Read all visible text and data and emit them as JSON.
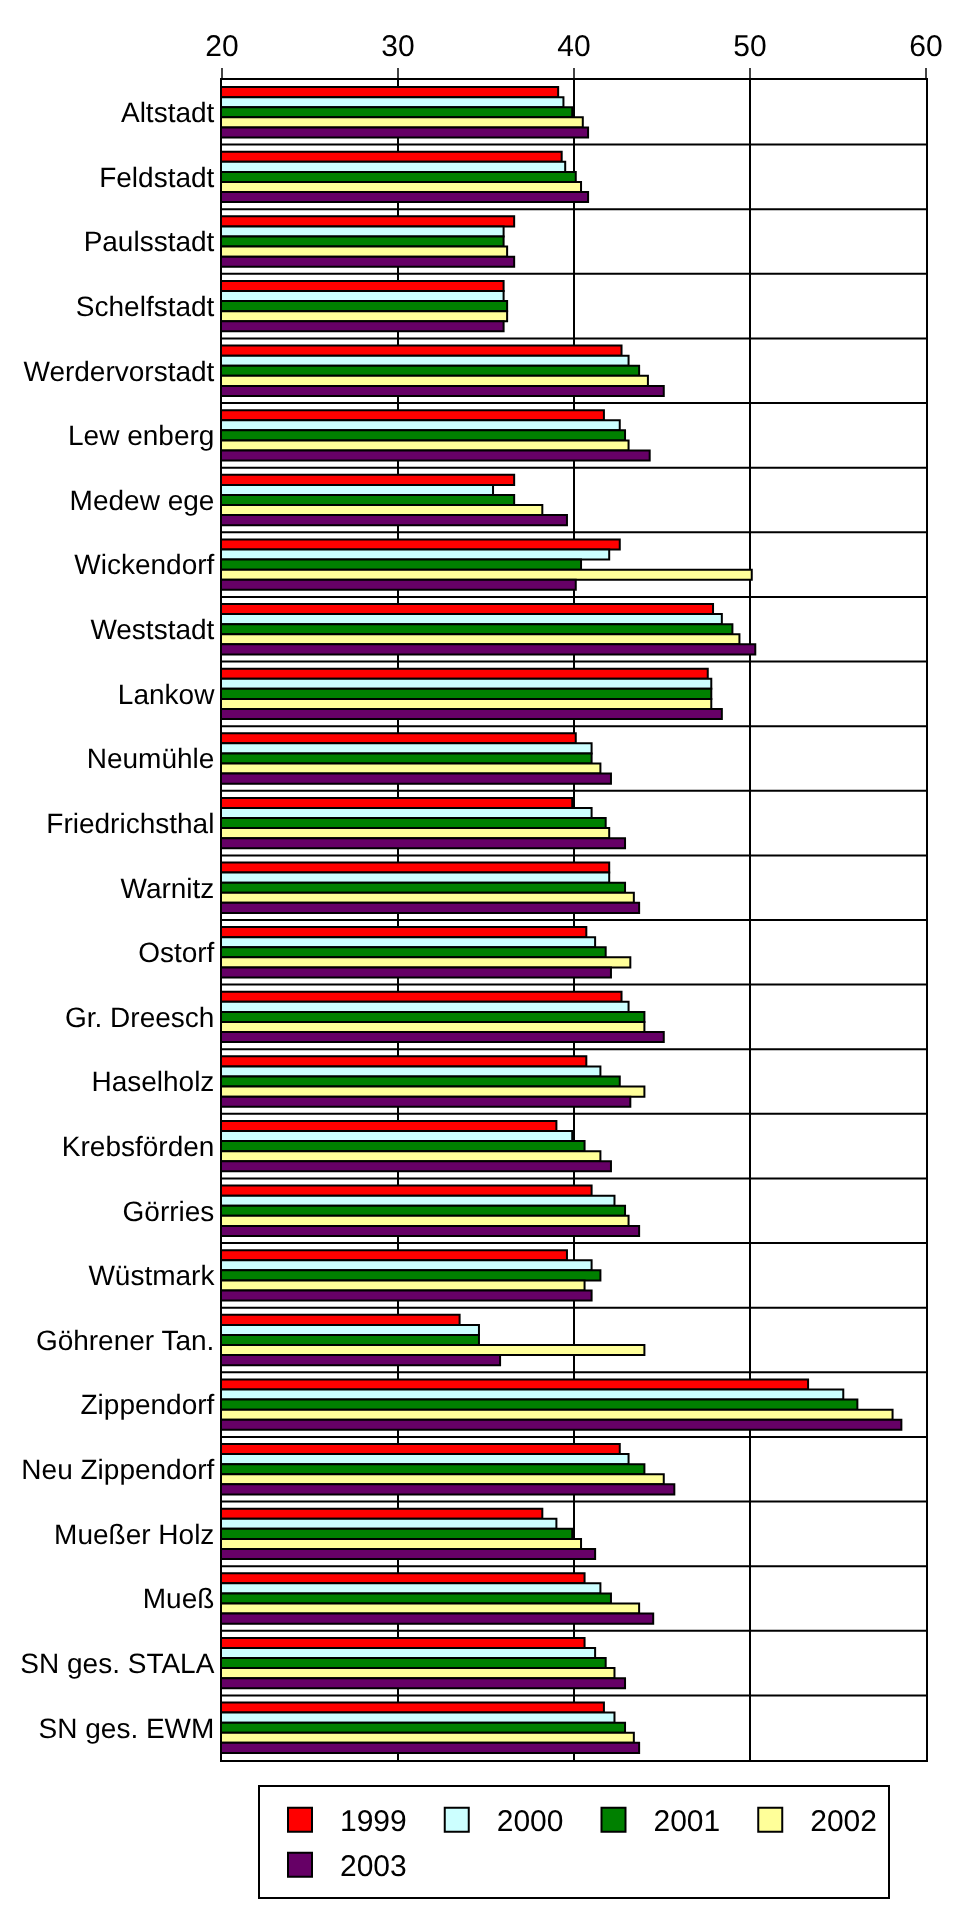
{
  "chart_data": {
    "type": "bar",
    "orientation": "horizontal",
    "categories": [
      "Altstadt",
      "Feldstadt",
      "Paulsstadt",
      "Schelfstadt",
      "Werdervorstadt",
      "Lew enberg",
      "Medew ege",
      "Wickendorf",
      "Weststadt",
      "Lankow",
      "Neumühle",
      "Friedrichsthal",
      "Warnitz",
      "Ostorf",
      "Gr. Dreesch",
      "Haselholz",
      "Krebsförden",
      "Görries",
      "Wüstmark",
      "Göhrener Tan.",
      "Zippendorf",
      "Neu Zippendorf",
      "Mueßer Holz",
      "Mueß",
      "SN ges. STALA",
      "SN ges. EWM"
    ],
    "series": [
      {
        "name": "1999",
        "color": "#ff0000",
        "values": [
          39.1,
          39.3,
          36.6,
          36.0,
          42.7,
          41.7,
          36.6,
          42.6,
          47.9,
          47.6,
          40.1,
          39.9,
          42.0,
          40.7,
          42.7,
          40.7,
          39.0,
          41.0,
          39.6,
          33.5,
          53.3,
          42.6,
          38.2,
          40.6,
          40.6,
          41.7
        ]
      },
      {
        "name": "2000",
        "color": "#ccffff",
        "values": [
          39.4,
          39.5,
          36.0,
          36.0,
          43.1,
          42.6,
          35.4,
          42.0,
          48.4,
          47.8,
          41.0,
          41.0,
          42.0,
          41.2,
          43.1,
          41.5,
          39.9,
          42.3,
          41.0,
          34.6,
          55.3,
          43.1,
          39.0,
          41.5,
          41.2,
          42.3
        ]
      },
      {
        "name": "2001",
        "color": "#008000",
        "values": [
          39.9,
          40.1,
          36.0,
          36.2,
          43.7,
          42.9,
          36.6,
          40.4,
          49.0,
          47.8,
          41.0,
          41.8,
          42.9,
          41.8,
          44.0,
          42.6,
          40.6,
          42.9,
          41.5,
          34.6,
          56.1,
          44.0,
          39.9,
          42.1,
          41.8,
          42.9
        ]
      },
      {
        "name": "2002",
        "color": "#ffff99",
        "values": [
          40.5,
          40.4,
          36.2,
          36.2,
          44.2,
          43.1,
          38.2,
          50.1,
          49.4,
          47.8,
          41.5,
          42.0,
          43.4,
          43.2,
          44.0,
          44.0,
          41.5,
          43.1,
          40.6,
          44.0,
          58.1,
          45.1,
          40.4,
          43.7,
          42.3,
          43.4
        ]
      },
      {
        "name": "2003",
        "color": "#660066",
        "values": [
          40.8,
          40.8,
          36.6,
          36.0,
          45.1,
          44.3,
          39.6,
          40.1,
          50.3,
          48.4,
          42.1,
          42.9,
          43.7,
          42.1,
          45.1,
          43.2,
          42.1,
          43.7,
          41.0,
          35.8,
          58.6,
          45.7,
          41.2,
          44.5,
          42.9,
          43.7
        ]
      }
    ],
    "xlim": [
      20,
      60
    ],
    "xticks": [
      20,
      30,
      40,
      50,
      60
    ],
    "grid": true,
    "legend": "bottom"
  }
}
